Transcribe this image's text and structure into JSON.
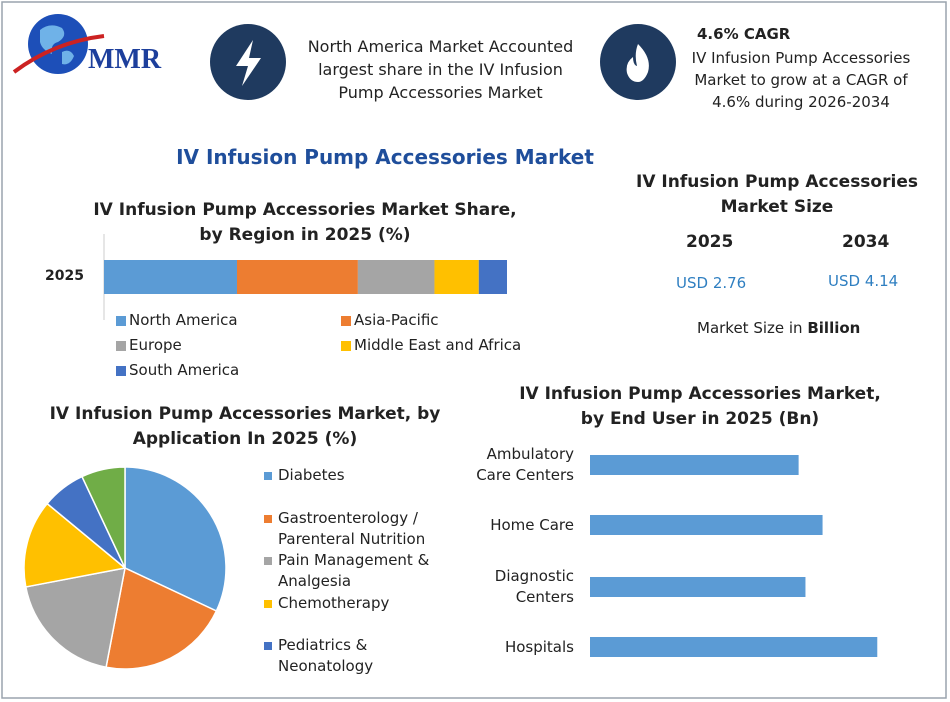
{
  "header": {
    "logo": "MMR",
    "info_text": "North America Market Accounted largest share in the IV Infusion Pump Accessories Market",
    "cagr_title": "4.6% CAGR",
    "cagr_text": "IV Infusion Pump Accessories Market to grow at a CAGR of 4.6% during 2026-2034"
  },
  "main_title": "IV Infusion Pump Accessories Market",
  "market_size": {
    "title": "IV Infusion Pump Accessories Market Size",
    "years": [
      "2025",
      "2034"
    ],
    "values": [
      "USD 2.76",
      "USD 4.14"
    ],
    "note": "Market Size in",
    "note_unit": "Billion"
  },
  "chart_data": [
    {
      "type": "stacked_bar",
      "title": "IV Infusion Pump Accessories Market Share, by Region in 2025 (%)",
      "categories": [
        "2025"
      ],
      "series": [
        {
          "name": "North America",
          "color": "#5b9bd5",
          "values": [
            33
          ]
        },
        {
          "name": "Asia-Pacific",
          "color": "#ed7d31",
          "values": [
            30
          ]
        },
        {
          "name": "Europe",
          "color": "#a5a5a5",
          "values": [
            19
          ]
        },
        {
          "name": "Middle East and Africa",
          "color": "#ffc000",
          "values": [
            11
          ]
        },
        {
          "name": "South America",
          "color": "#4472c4",
          "values": [
            7
          ]
        }
      ]
    },
    {
      "type": "pie",
      "title": "IV Infusion Pump Accessories Market, by Application In 2025 (%)",
      "categories": [
        "Diabetes",
        "Gastroenterology / Parenteral Nutrition",
        "Pain Management & Analgesia",
        "Chemotherapy",
        "Pediatrics & Neonatology",
        null
      ],
      "values": [
        32,
        21,
        19,
        14,
        7,
        7
      ],
      "colors": [
        "#5b9bd5",
        "#ed7d31",
        "#a5a5a5",
        "#ffc000",
        "#4472c4",
        "#70ad47"
      ]
    },
    {
      "type": "hbar",
      "title": "IV Infusion Pump Accessories Market, by End User in 2025 (Bn)",
      "categories": [
        "Ambulatory Care Centers",
        "Home Care",
        "Diagnostic Centers",
        "Hospitals"
      ],
      "values": [
        0.61,
        0.68,
        0.63,
        0.84
      ],
      "color": "#5b9bd5"
    }
  ]
}
